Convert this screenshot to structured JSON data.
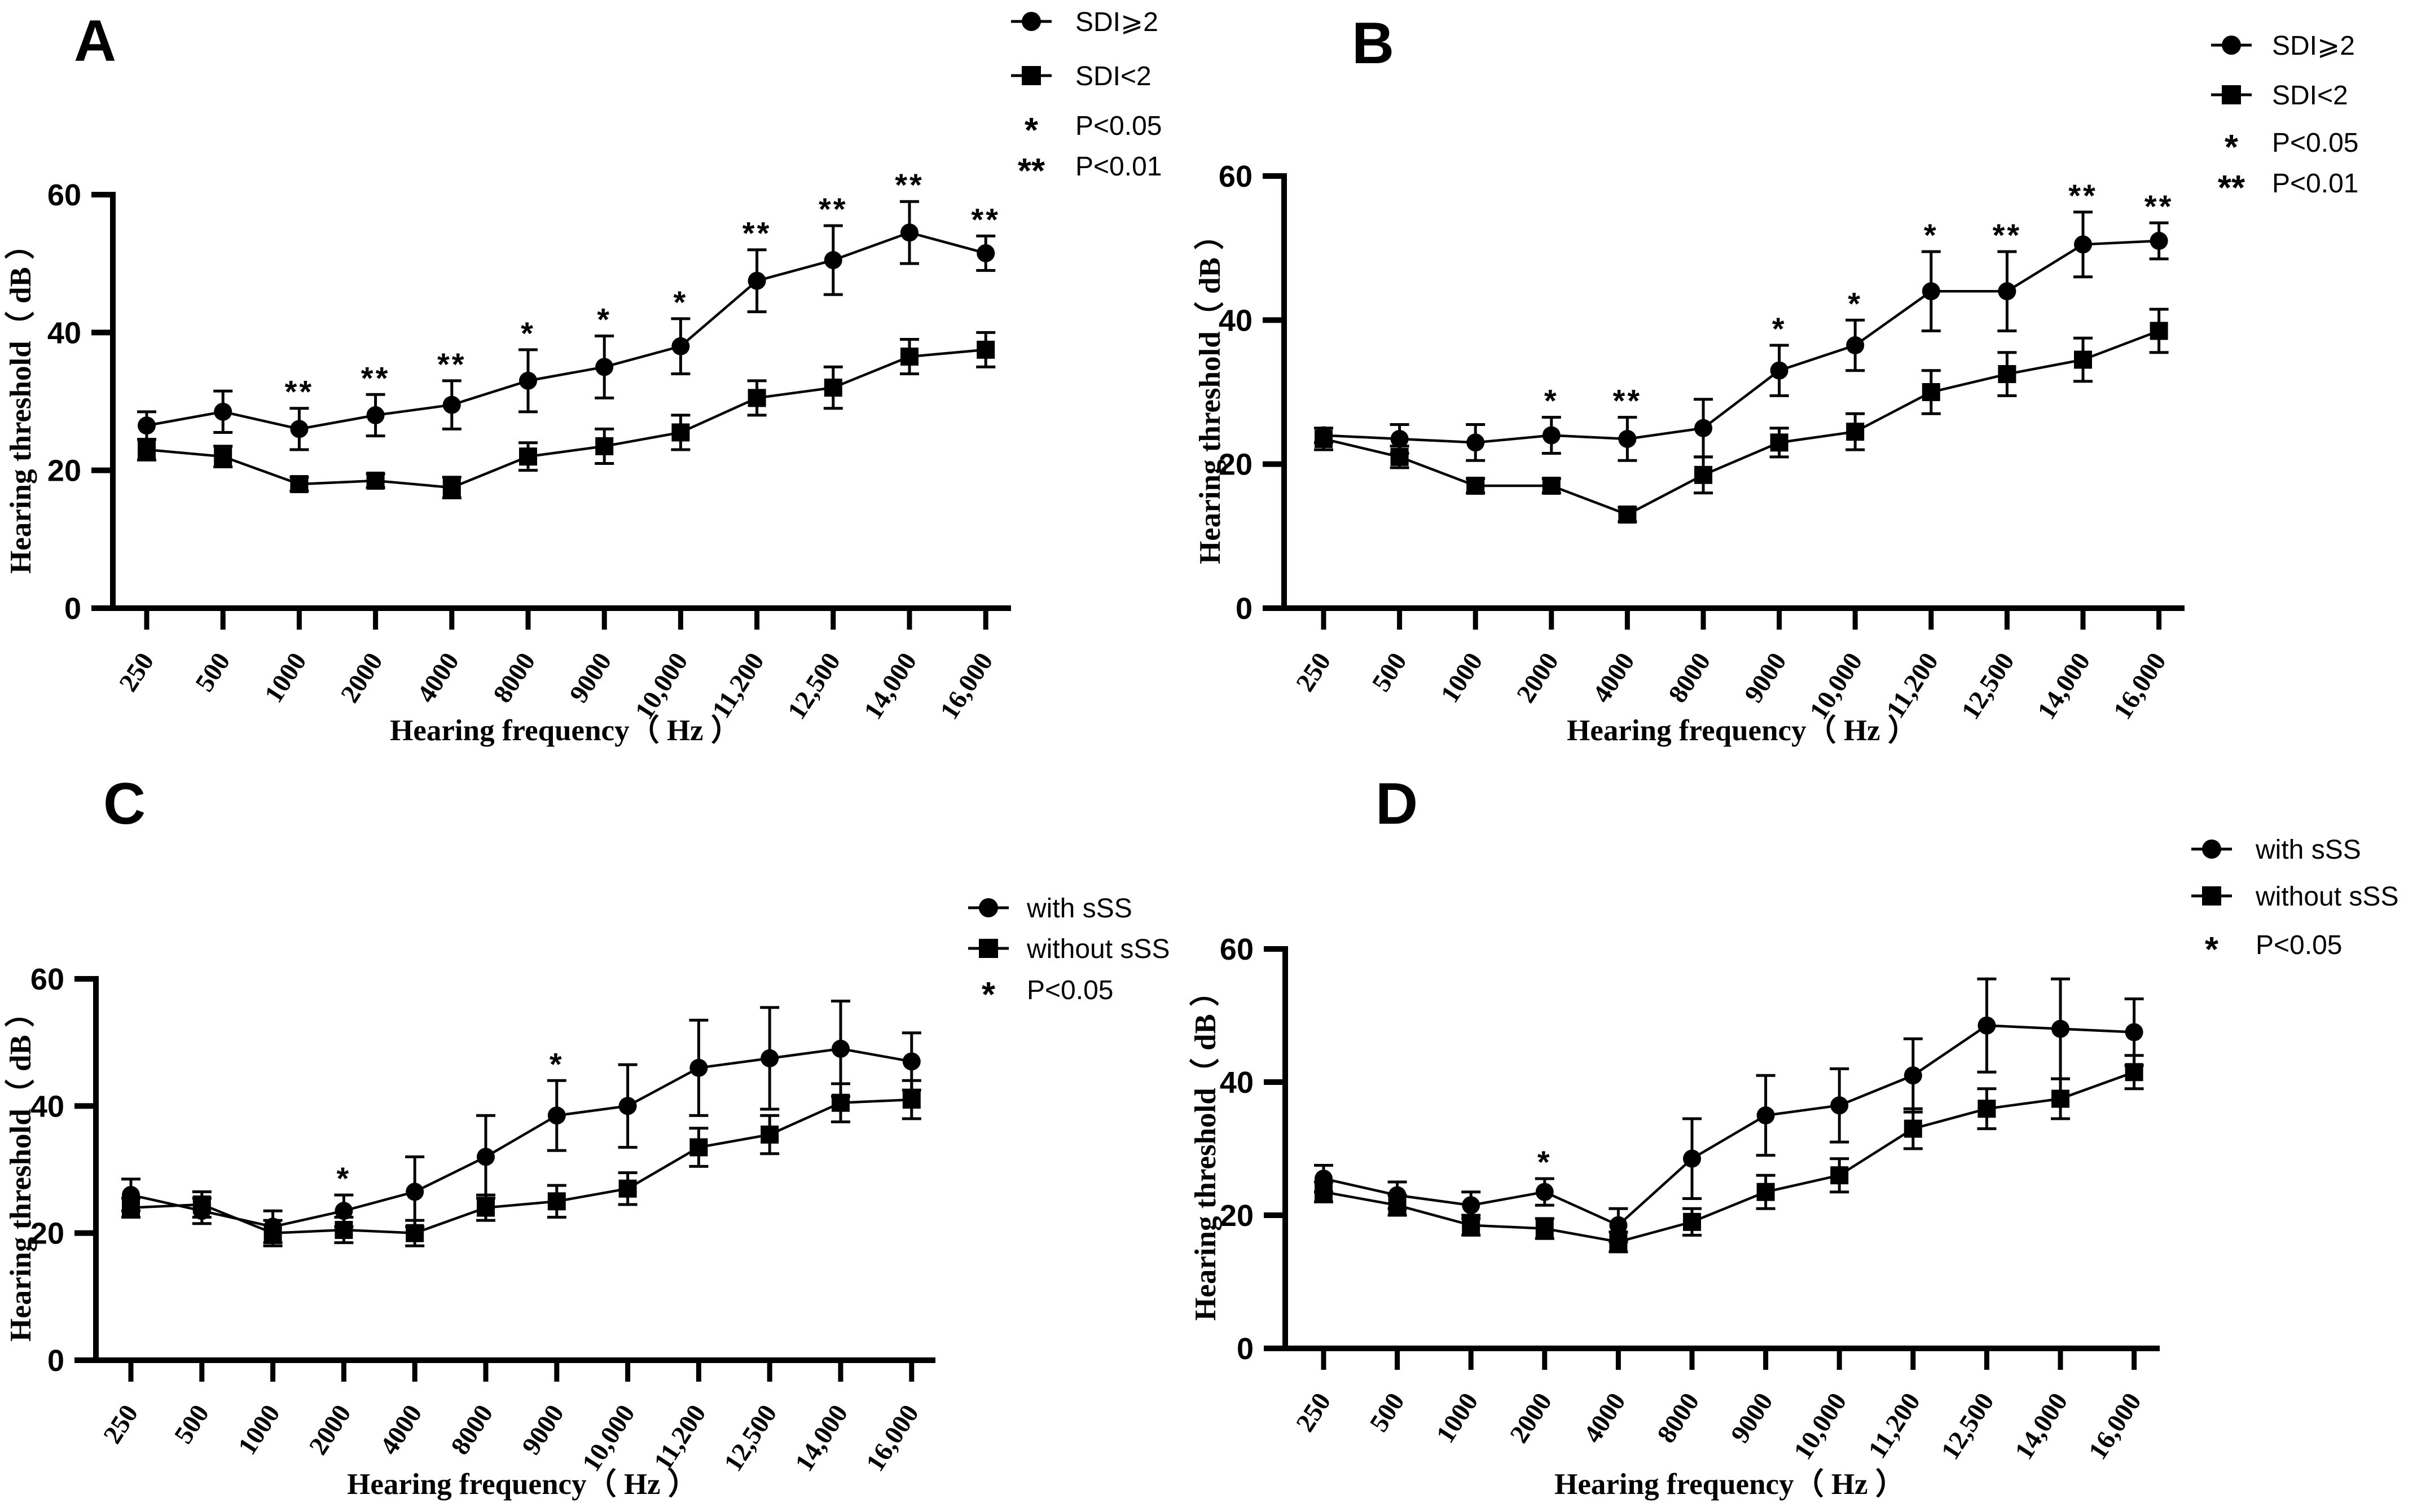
{
  "figure": {
    "background": "#ffffff",
    "ink_color": "#000000",
    "y_axis_title": "Hearing threshold（ dB ）",
    "x_axis_title": "Hearing frequency（ Hz ）",
    "y_ticks": [
      "0",
      "20",
      "40",
      "60"
    ],
    "ylim": [
      0,
      60
    ]
  },
  "chart_data": [
    {
      "type": "line",
      "panel_label": "A",
      "title": "",
      "xlabel": "Hearing frequency（ Hz ）",
      "ylabel": "Hearing threshold（ dB ）",
      "ylim": [
        0,
        60
      ],
      "yticks": [
        0,
        20,
        40,
        60
      ],
      "grid": false,
      "legend_position": "top-right-outside",
      "categories": [
        "250",
        "500",
        "1000",
        "2000",
        "4000",
        "8000",
        "9000",
        "10,000",
        "11,200",
        "12,500",
        "14,000",
        "16,000"
      ],
      "series": [
        {
          "name": "SDI⩾2",
          "marker": "circle",
          "values": [
            26.5,
            28.5,
            26,
            28,
            29.5,
            33,
            35,
            38,
            47.5,
            50.5,
            54.5,
            51.5
          ],
          "errors": [
            2,
            3,
            3,
            3,
            3.5,
            4.5,
            4.5,
            4,
            4.5,
            5,
            4.5,
            2.5
          ]
        },
        {
          "name": "SDI<2",
          "marker": "square",
          "values": [
            23,
            22,
            18,
            18.5,
            17.5,
            22,
            23.5,
            25.5,
            30.5,
            32,
            36.5,
            37.5
          ],
          "errors": [
            1.5,
            1.5,
            1,
            1,
            1.5,
            2,
            2.5,
            2.5,
            2.5,
            3,
            2.5,
            2.5
          ]
        }
      ],
      "significance": [
        "",
        "",
        "**",
        "**",
        "**",
        "*",
        "*",
        "*",
        "**",
        "**",
        "**",
        "**"
      ],
      "legend_sig": [
        {
          "symbol": "*",
          "label": "P<0.05"
        },
        {
          "symbol": "**",
          "label": "P<0.01"
        }
      ]
    },
    {
      "type": "line",
      "panel_label": "B",
      "title": "",
      "xlabel": "Hearing frequency（ Hz ）",
      "ylabel": "Hearing threshold（ dB ）",
      "ylim": [
        0,
        60
      ],
      "yticks": [
        0,
        20,
        40,
        60
      ],
      "grid": false,
      "legend_position": "top-right-outside",
      "categories": [
        "250",
        "500",
        "1000",
        "2000",
        "4000",
        "8000",
        "9000",
        "10,000",
        "11,200",
        "12,500",
        "14,000",
        "16,000"
      ],
      "series": [
        {
          "name": "SDI⩾2",
          "marker": "circle",
          "values": [
            24,
            23.5,
            23,
            24,
            23.5,
            25,
            33,
            36.5,
            44,
            44,
            50.5,
            51
          ],
          "errors": [
            1,
            2,
            2.5,
            2.5,
            3,
            4,
            3.5,
            3.5,
            5.5,
            5.5,
            4.5,
            2.5
          ]
        },
        {
          "name": "SDI<2",
          "marker": "square",
          "values": [
            23.5,
            21,
            17,
            17,
            13,
            18.5,
            23,
            24.5,
            30,
            32.5,
            34.5,
            38.5
          ],
          "errors": [
            1.5,
            1.5,
            1,
            1,
            1,
            2.5,
            2,
            2.5,
            3,
            3,
            3,
            3
          ]
        }
      ],
      "significance": [
        "",
        "",
        "",
        "*",
        "**",
        "",
        "*",
        "*",
        "*",
        "**",
        "**",
        "**"
      ],
      "legend_sig": [
        {
          "symbol": "*",
          "label": "P<0.05"
        },
        {
          "symbol": "**",
          "label": "P<0.01"
        }
      ]
    },
    {
      "type": "line",
      "panel_label": "C",
      "title": "",
      "xlabel": "Hearing frequency（ Hz ）",
      "ylabel": "Hearing threshold（ dB ）",
      "ylim": [
        0,
        60
      ],
      "yticks": [
        0,
        20,
        40,
        60
      ],
      "grid": false,
      "legend_position": "right-outside",
      "categories": [
        "250",
        "500",
        "1000",
        "2000",
        "4000",
        "8000",
        "9000",
        "10,000",
        "11,200",
        "12,500",
        "14,000",
        "16,000"
      ],
      "series": [
        {
          "name": "with sSS",
          "marker": "circle",
          "values": [
            26,
            23.5,
            21,
            23.5,
            26.5,
            32,
            38.5,
            40,
            46,
            47.5,
            49,
            47
          ],
          "errors": [
            2.5,
            2,
            2.5,
            2.5,
            5.5,
            6.5,
            5.5,
            6.5,
            7.5,
            8,
            7.5,
            4.5
          ]
        },
        {
          "name": "without sSS",
          "marker": "square",
          "values": [
            24,
            24.5,
            20,
            20.5,
            20,
            24,
            25,
            27,
            33.5,
            35.5,
            40.5,
            41
          ],
          "errors": [
            1.5,
            2,
            2,
            2,
            2,
            2,
            2.5,
            2.5,
            3,
            3,
            3,
            3
          ]
        }
      ],
      "significance": [
        "",
        "",
        "",
        "*",
        "",
        "",
        "*",
        "",
        "",
        "",
        "",
        ""
      ],
      "legend_sig": [
        {
          "symbol": "*",
          "label": "P<0.05"
        }
      ]
    },
    {
      "type": "line",
      "panel_label": "D",
      "title": "",
      "xlabel": "Hearing frequency（ Hz ）",
      "ylabel": "Hearing threshold（ dB ）",
      "ylim": [
        0,
        60
      ],
      "yticks": [
        0,
        20,
        40,
        60
      ],
      "grid": false,
      "legend_position": "top-right-outside",
      "categories": [
        "250",
        "500",
        "1000",
        "2000",
        "4000",
        "8000",
        "9000",
        "10,000",
        "11,200",
        "12,500",
        "14,000",
        "16,000"
      ],
      "series": [
        {
          "name": "with sSS",
          "marker": "circle",
          "values": [
            25.5,
            23,
            21.5,
            23.5,
            18.5,
            28.5,
            35,
            36.5,
            41,
            48.5,
            48,
            47.5
          ],
          "errors": [
            2,
            2,
            2,
            2,
            2.5,
            6,
            6,
            5.5,
            5.5,
            7,
            7.5,
            5
          ]
        },
        {
          "name": "without sSS",
          "marker": "square",
          "values": [
            23.5,
            21.5,
            18.5,
            18,
            16,
            19,
            23.5,
            26,
            33,
            36,
            37.5,
            41.5
          ],
          "errors": [
            1.5,
            1.5,
            1.5,
            1.5,
            1.5,
            2,
            2.5,
            2.5,
            3,
            3,
            3,
            2.5
          ]
        }
      ],
      "significance": [
        "",
        "",
        "",
        "*",
        "",
        "",
        "",
        "",
        "",
        "",
        "",
        ""
      ],
      "legend_sig": [
        {
          "symbol": "*",
          "label": "P<0.05"
        }
      ]
    }
  ]
}
